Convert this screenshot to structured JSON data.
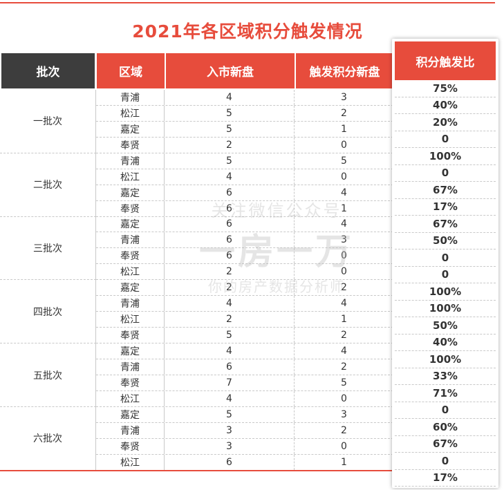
{
  "title": "2021年各区域积分触发情况",
  "headers": {
    "batch": "批次",
    "district": "区域",
    "new_listings": "入市新盘",
    "triggered": "触发积分新盘",
    "ratio": "积分触发比"
  },
  "batches": [
    "一批次",
    "二批次",
    "三批次",
    "四批次",
    "五批次",
    "六批次"
  ],
  "rows": [
    {
      "district": "青浦",
      "new": "4",
      "trig": "3"
    },
    {
      "district": "松江",
      "new": "5",
      "trig": "2"
    },
    {
      "district": "嘉定",
      "new": "5",
      "trig": "1"
    },
    {
      "district": "奉贤",
      "new": "2",
      "trig": "0"
    },
    {
      "district": "青浦",
      "new": "5",
      "trig": "5"
    },
    {
      "district": "松江",
      "new": "4",
      "trig": "0"
    },
    {
      "district": "嘉定",
      "new": "6",
      "trig": "4"
    },
    {
      "district": "奉贤",
      "new": "6",
      "trig": "1"
    },
    {
      "district": "嘉定",
      "new": "6",
      "trig": "4"
    },
    {
      "district": "青浦",
      "new": "6",
      "trig": "3"
    },
    {
      "district": "奉贤",
      "new": "6",
      "trig": "0"
    },
    {
      "district": "松江",
      "new": "2",
      "trig": "0"
    },
    {
      "district": "嘉定",
      "new": "2",
      "trig": "2"
    },
    {
      "district": "青浦",
      "new": "4",
      "trig": "4"
    },
    {
      "district": "松江",
      "new": "2",
      "trig": "1"
    },
    {
      "district": "奉贤",
      "new": "5",
      "trig": "2"
    },
    {
      "district": "嘉定",
      "new": "4",
      "trig": "4"
    },
    {
      "district": "青浦",
      "new": "6",
      "trig": "2"
    },
    {
      "district": "奉贤",
      "new": "7",
      "trig": "5"
    },
    {
      "district": "松江",
      "new": "4",
      "trig": "0"
    },
    {
      "district": "嘉定",
      "new": "5",
      "trig": "3"
    },
    {
      "district": "青浦",
      "new": "3",
      "trig": "2"
    },
    {
      "district": "奉贤",
      "new": "3",
      "trig": "0"
    },
    {
      "district": "松江",
      "new": "6",
      "trig": "1"
    }
  ],
  "ratios": [
    "75%",
    "40%",
    "20%",
    "0",
    "100%",
    "0",
    "67%",
    "17%",
    "67%",
    "50%",
    "0",
    "0",
    "100%",
    "100%",
    "50%",
    "40%",
    "100%",
    "33%",
    "71%",
    "0",
    "60%",
    "67%",
    "0",
    "17%"
  ],
  "watermark": {
    "line1": "关注微信公众号",
    "line2": "一房一万",
    "line3": "你的房产数据分析师"
  },
  "colors": {
    "accent": "#e74c3c",
    "dark_header": "#3d3d3d"
  }
}
